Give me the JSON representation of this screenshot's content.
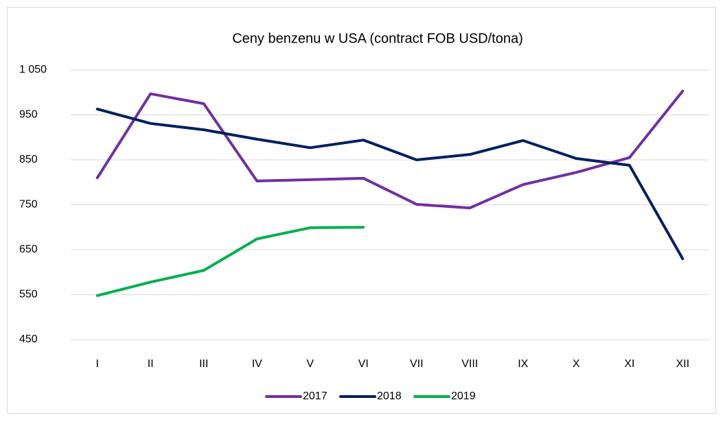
{
  "chart_data": {
    "type": "line",
    "title": "Ceny benzenu w USA (contract FOB USD/tona)",
    "categories": [
      "I",
      "II",
      "III",
      "IV",
      "V",
      "VI",
      "VII",
      "VIII",
      "IX",
      "X",
      "XI",
      "XII"
    ],
    "series": [
      {
        "name": "2017",
        "color": "#7030a0",
        "values": [
          810,
          997,
          975,
          803,
          806,
          809,
          751,
          743,
          795,
          822,
          855,
          1003
        ]
      },
      {
        "name": "2018",
        "color": "#002060",
        "values": [
          963,
          931,
          917,
          896,
          877,
          894,
          850,
          862,
          893,
          853,
          838,
          630
        ]
      },
      {
        "name": "2019",
        "color": "#00b050",
        "values": [
          548,
          578,
          604,
          674,
          699,
          700,
          null,
          null,
          null,
          null,
          null,
          null
        ]
      }
    ],
    "ylim": [
      450,
      1050
    ],
    "yticks": [
      450,
      550,
      650,
      750,
      850,
      950,
      {
        "value": 1050,
        "label": "1 050"
      }
    ],
    "grid": true,
    "legend": "bottom"
  }
}
